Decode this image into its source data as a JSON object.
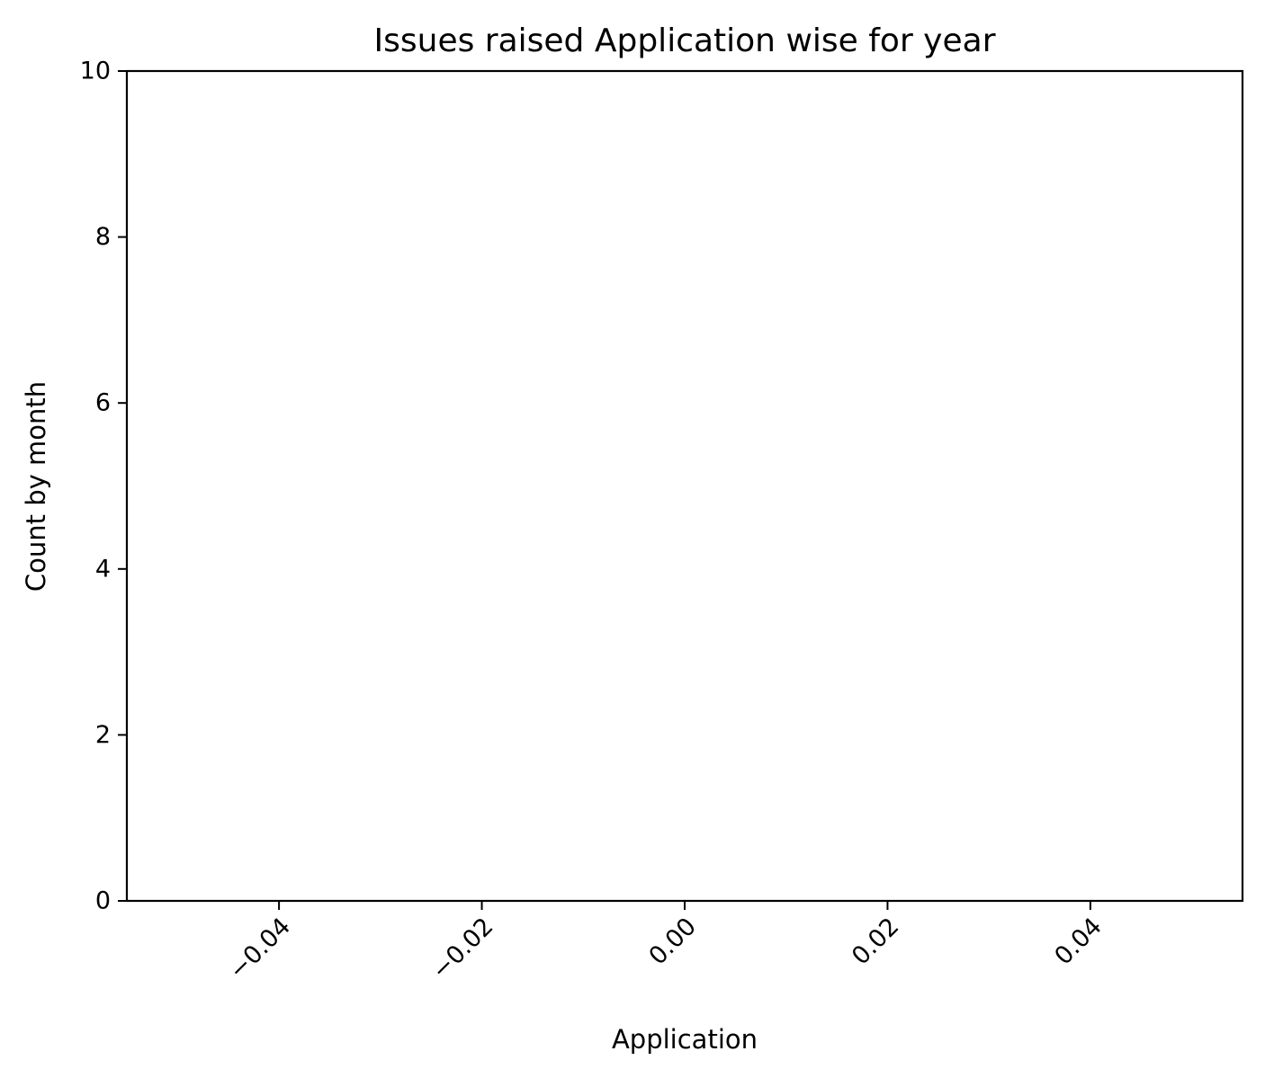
{
  "chart_data": {
    "type": "bar",
    "title": "Issues raised Application wise for  year",
    "xlabel": "Application",
    "ylabel": "Count by month",
    "categories": [],
    "values": [],
    "xlim": [
      -0.055,
      0.055
    ],
    "ylim": [
      0,
      10
    ],
    "x_ticks": [
      -0.04,
      -0.02,
      0.0,
      0.02,
      0.04
    ],
    "x_tick_labels": [
      "−0.04",
      "−0.02",
      "0.00",
      "0.02",
      "0.04"
    ],
    "y_ticks": [
      0,
      2,
      4,
      6,
      8,
      10
    ],
    "y_tick_labels": [
      "0",
      "2",
      "4",
      "6",
      "8",
      "10"
    ],
    "x_tick_rotation_deg": 45,
    "grid": false,
    "legend": "none",
    "colors": {
      "background": "#ffffff",
      "axes": "#000000",
      "text": "#000000"
    }
  }
}
